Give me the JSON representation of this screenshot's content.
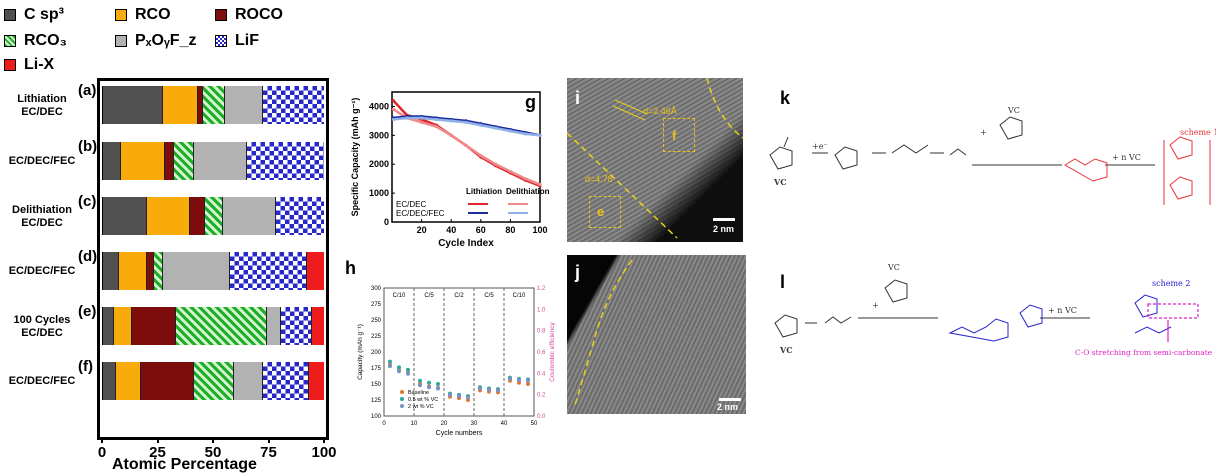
{
  "legend": [
    {
      "key": "csp3",
      "label": "C sp³"
    },
    {
      "key": "rco",
      "label": "RCO"
    },
    {
      "key": "roco",
      "label": "ROCO"
    },
    {
      "key": "rco3",
      "label": "RCO₃"
    },
    {
      "key": "pxoyfz",
      "label": "PₓOᵧF_z"
    },
    {
      "key": "lif",
      "label": "LiF"
    },
    {
      "key": "lix",
      "label": "Li-X"
    }
  ],
  "colors": {
    "csp3": "#505050",
    "rco": "#f9ab0c",
    "roco": "#7d0c0c",
    "rco3": "#1fae2c",
    "pxoyfz": "#b2b2b2",
    "lif": "#2828c8",
    "lix": "#ee1c1c"
  },
  "chart_data": [
    {
      "type": "bar",
      "orientation": "horizontal-stacked",
      "xlabel": "Atomic Percentage",
      "xlim": [
        0,
        100
      ],
      "xticks": [
        "0",
        "25",
        "50",
        "75",
        "100"
      ],
      "rows": [
        {
          "letter": "(a)",
          "label_lines": [
            "Lithiation",
            "EC/DEC"
          ],
          "values": {
            "csp3": 27,
            "rco": 16,
            "roco": 2,
            "rco3": 10,
            "pxoyfz": 17,
            "lif": 28,
            "lix": 0
          }
        },
        {
          "letter": "(b)",
          "label_lines": [
            "EC/DEC/FEC"
          ],
          "values": {
            "csp3": 8,
            "rco": 20,
            "roco": 4,
            "rco3": 9,
            "pxoyfz": 24,
            "lif": 35,
            "lix": 0
          }
        },
        {
          "letter": "(c)",
          "label_lines": [
            "Delithiation",
            "EC/DEC"
          ],
          "values": {
            "csp3": 20,
            "rco": 19,
            "roco": 7,
            "rco3": 8,
            "pxoyfz": 24,
            "lif": 22,
            "lix": 0
          }
        },
        {
          "letter": "(d)",
          "label_lines": [
            "EC/DEC/FEC"
          ],
          "values": {
            "csp3": 7,
            "rco": 13,
            "roco": 3,
            "rco3": 4,
            "pxoyfz": 30,
            "lif": 35,
            "lix": 8
          }
        },
        {
          "letter": "(e)",
          "label_lines": [
            "100 Cycles",
            "EC/DEC"
          ],
          "values": {
            "csp3": 5,
            "rco": 8,
            "roco": 20,
            "rco3": 41,
            "pxoyfz": 6,
            "lif": 14,
            "lix": 6
          }
        },
        {
          "letter": "(f)",
          "label_lines": [
            "EC/DEC/FEC"
          ],
          "values": {
            "csp3": 6,
            "rco": 11,
            "roco": 24,
            "rco3": 18,
            "pxoyfz": 13,
            "lif": 21,
            "lix": 7
          }
        }
      ]
    },
    {
      "type": "line",
      "panel": "g",
      "xlabel": "Cycle Index",
      "ylabel": "Specific Capacity (mAh g⁻¹)",
      "xlim": [
        0,
        100
      ],
      "ylim": [
        0,
        4500
      ],
      "xticks": [
        "20",
        "40",
        "60",
        "80",
        "100"
      ],
      "yticks": [
        "0",
        "1000",
        "2000",
        "3000",
        "4000"
      ],
      "legend_headers": [
        "Lithiation",
        "Delithiation"
      ],
      "legend_rows": [
        "EC/DEC",
        "EC/DEC/FEC"
      ],
      "series": [
        {
          "group": "EC/DEC",
          "mode": "Lithiation",
          "color": "#e0242b",
          "x": [
            1,
            10,
            20,
            30,
            40,
            50,
            60,
            70,
            80,
            90,
            100
          ],
          "y": [
            4200,
            3700,
            3550,
            3350,
            3000,
            2650,
            2250,
            1950,
            1700,
            1450,
            1250
          ]
        },
        {
          "group": "EC/DEC",
          "mode": "Delithiation",
          "color": "#f08a8a",
          "x": [
            1,
            10,
            20,
            30,
            40,
            50,
            60,
            70,
            80,
            90,
            100
          ],
          "y": [
            3900,
            3600,
            3450,
            3300,
            3000,
            2650,
            2300,
            2000,
            1750,
            1500,
            1300
          ]
        },
        {
          "group": "EC/DEC/FEC",
          "mode": "Lithiation",
          "color": "#1c2c9c",
          "x": [
            1,
            10,
            20,
            30,
            40,
            50,
            60,
            70,
            80,
            90,
            100
          ],
          "y": [
            3600,
            3650,
            3650,
            3600,
            3550,
            3500,
            3400,
            3300,
            3200,
            3100,
            3000
          ]
        },
        {
          "group": "EC/DEC/FEC",
          "mode": "Delithiation",
          "color": "#8fb2e6",
          "x": [
            1,
            10,
            20,
            30,
            40,
            50,
            60,
            70,
            80,
            90,
            100
          ],
          "y": [
            3550,
            3600,
            3600,
            3550,
            3500,
            3450,
            3350,
            3250,
            3150,
            3050,
            3000
          ]
        }
      ]
    },
    {
      "type": "scatter",
      "panel": "h",
      "xlabel": "Cycle numbers",
      "ylabel": "Capacity (mAh g⁻¹)",
      "ylabel_right": "Coulombic efficiency",
      "xlim": [
        0,
        50
      ],
      "ylim": [
        100,
        300
      ],
      "ylim_right": [
        0,
        1.2
      ],
      "xticks": [
        "0",
        "10",
        "20",
        "30",
        "40",
        "50"
      ],
      "yticks": [
        "100",
        "125",
        "150",
        "175",
        "200",
        "225",
        "250",
        "275",
        "300"
      ],
      "yticks_right": [
        "0.0",
        "0.2",
        "0.4",
        "0.6",
        "0.8",
        "1.0",
        "1.2"
      ],
      "rate_labels": [
        "C/10",
        "C/5",
        "C/2",
        "C/5",
        "C/10"
      ],
      "series": [
        {
          "name": "Baseline",
          "color": "#e8742c",
          "x": [
            2,
            5,
            8,
            12,
            15,
            18,
            22,
            25,
            28,
            32,
            35,
            38,
            42,
            45,
            48
          ],
          "y": [
            180,
            172,
            168,
            150,
            146,
            144,
            130,
            128,
            125,
            140,
            138,
            137,
            155,
            152,
            150
          ]
        },
        {
          "name": "0.5 wt % VC",
          "color": "#2aa89a",
          "x": [
            2,
            5,
            8,
            12,
            15,
            18,
            22,
            25,
            28,
            32,
            35,
            38,
            42,
            45,
            48
          ],
          "y": [
            185,
            176,
            172,
            155,
            152,
            150,
            135,
            133,
            131,
            145,
            143,
            142,
            160,
            158,
            157
          ]
        },
        {
          "name": "2 wt % VC",
          "color": "#7890c8",
          "x": [
            2,
            5,
            8,
            12,
            15,
            18,
            22,
            25,
            28,
            32,
            35,
            38,
            42,
            45,
            48
          ],
          "y": [
            178,
            170,
            166,
            148,
            145,
            143,
            133,
            131,
            129,
            143,
            141,
            140,
            158,
            156,
            155
          ]
        }
      ]
    }
  ],
  "panels": {
    "g": "g",
    "h": "h",
    "i": "i",
    "j": "j",
    "k": "k",
    "l": "l"
  },
  "tem": {
    "i_d_spacing_1": "d=2.46Å",
    "i_d_spacing_2": "d=4.78",
    "i_box_f": "f",
    "i_box_e": "e",
    "scale_i": "2 nm",
    "scale_j": "2 nm"
  },
  "scheme": {
    "vc_label": "VC",
    "plus_e": "+e⁻",
    "plus_vc": "+",
    "plus_n_vc": "+ n VC",
    "scheme1": "scheme 1",
    "scheme2": "scheme 2",
    "co_note": "C-O stretching from semi-carbonate"
  }
}
